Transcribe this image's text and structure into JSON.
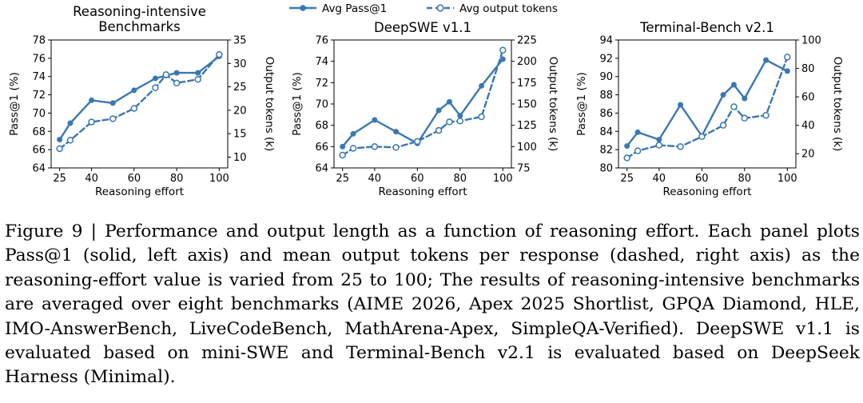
{
  "legend": {
    "pass_label": "Avg Pass@1",
    "tokens_label": "Avg output tokens"
  },
  "colors": {
    "series": "#3a77b4"
  },
  "chart_data": [
    {
      "type": "line",
      "title": "Reasoning-intensive\nBenchmarks",
      "xlabel": "Reasoning effort",
      "ylabel": "Pass@1 (%)",
      "y2label": "Output tokens (k)",
      "xticks": [
        25,
        40,
        60,
        80,
        100
      ],
      "xlim": [
        21,
        104
      ],
      "ylim": [
        64,
        78
      ],
      "yticks": [
        64,
        66,
        68,
        70,
        72,
        74,
        76,
        78
      ],
      "y2lim": [
        7.7,
        35
      ],
      "y2ticks": [
        10,
        15,
        20,
        25,
        30,
        35
      ],
      "series": [
        {
          "name": "Avg Pass@1",
          "axis": "left",
          "x": [
            25,
            30,
            40,
            50,
            60,
            70,
            75,
            80,
            90,
            100
          ],
          "values": [
            67.1,
            68.9,
            71.4,
            71.1,
            72.5,
            73.8,
            74.1,
            74.4,
            74.4,
            76.2
          ]
        },
        {
          "name": "Avg output tokens",
          "axis": "right",
          "x": [
            25,
            30,
            40,
            50,
            60,
            70,
            75,
            80,
            90,
            100
          ],
          "values": [
            11.8,
            13.6,
            17.5,
            18.2,
            20.4,
            24.8,
            27.6,
            25.8,
            26.6,
            31.9
          ]
        }
      ]
    },
    {
      "type": "line",
      "title": "DeepSWE v1.1",
      "xlabel": "Reasoning effort",
      "ylabel": "Pass@1 (%)",
      "y2label": "Output tokens (k)",
      "xticks": [
        25,
        40,
        60,
        80,
        100
      ],
      "xlim": [
        21,
        104
      ],
      "ylim": [
        64,
        76
      ],
      "yticks": [
        64,
        66,
        68,
        70,
        72,
        74,
        76
      ],
      "y2lim": [
        75,
        225
      ],
      "y2ticks": [
        75,
        100,
        125,
        150,
        175,
        200,
        225
      ],
      "series": [
        {
          "name": "Avg Pass@1",
          "axis": "left",
          "x": [
            25,
            30,
            40,
            50,
            60,
            70,
            75,
            80,
            90,
            100
          ],
          "values": [
            66.0,
            67.2,
            68.5,
            67.4,
            66.3,
            69.4,
            70.2,
            68.9,
            71.7,
            74.2
          ]
        },
        {
          "name": "Avg output tokens",
          "axis": "right",
          "x": [
            25,
            30,
            40,
            50,
            60,
            70,
            75,
            80,
            90,
            100
          ],
          "values": [
            90,
            98,
            100,
            99,
            106,
            119,
            129,
            130,
            135,
            213
          ]
        }
      ]
    },
    {
      "type": "line",
      "title": "Terminal-Bench v2.1",
      "xlabel": "Reasoning effort",
      "ylabel": "Pass@1 (%)",
      "y2label": "Output tokens (k)",
      "xticks": [
        25,
        40,
        60,
        80,
        100
      ],
      "xlim": [
        21,
        104
      ],
      "ylim": [
        80,
        94
      ],
      "yticks": [
        80,
        82,
        84,
        86,
        88,
        90,
        92,
        94
      ],
      "y2lim": [
        10,
        100
      ],
      "y2ticks": [
        20,
        40,
        60,
        80,
        100
      ],
      "series": [
        {
          "name": "Avg Pass@1",
          "axis": "left",
          "x": [
            25,
            30,
            40,
            50,
            60,
            70,
            75,
            80,
            90,
            100
          ],
          "values": [
            82.4,
            83.9,
            83.1,
            86.9,
            83.5,
            88.0,
            89.1,
            87.6,
            91.8,
            90.6
          ]
        },
        {
          "name": "Avg output tokens",
          "axis": "right",
          "x": [
            25,
            30,
            40,
            50,
            60,
            70,
            75,
            80,
            90,
            100
          ],
          "values": [
            17,
            22,
            26,
            25,
            32,
            40,
            53,
            45,
            47,
            88
          ]
        }
      ]
    }
  ],
  "caption": {
    "text": "Figure 9 | Performance and output length as a function of reasoning effort. Each panel plots Pass@1 (solid, left axis) and mean output tokens per response (dashed, right axis) as the reasoning-effort value is varied from 25 to 100; The results of reasoning-intensive benchmarks are averaged over eight benchmarks (AIME 2026, Apex 2025 Shortlist, GPQA Diamond, HLE, IMO-AnswerBench, LiveCodeBench, MathArena-Apex, SimpleQA-Verified). DeepSWE v1.1 is evaluated based on mini-SWE and Terminal-Bench v2.1 is evaluated based on DeepSeek Harness (Minimal)."
  }
}
